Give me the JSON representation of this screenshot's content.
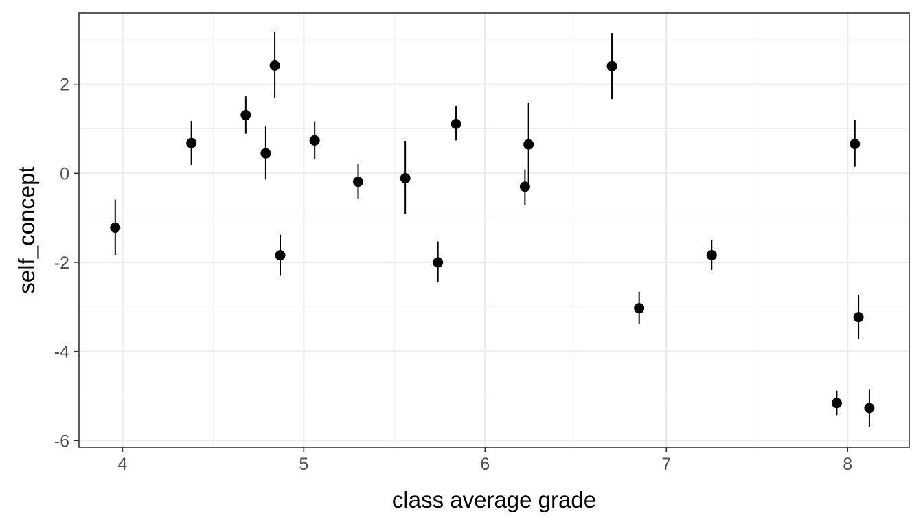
{
  "chart_data": {
    "type": "scatter",
    "xlabel": "class average grade",
    "ylabel": "self_concept",
    "xlim": [
      3.76,
      8.34
    ],
    "ylim": [
      -6.15,
      3.6
    ],
    "x_ticks": [
      4,
      5,
      6,
      7,
      8
    ],
    "y_ticks": [
      -6,
      -4,
      -2,
      0,
      2
    ],
    "x_tick_labels": [
      "4",
      "5",
      "6",
      "7",
      "8"
    ],
    "y_tick_labels": [
      "-6",
      "-4",
      "-2",
      "0",
      "2"
    ],
    "grid": true,
    "legend": "none",
    "points": [
      {
        "x": 3.96,
        "y": -1.22,
        "ymin": -1.83,
        "ymax": -0.59
      },
      {
        "x": 4.38,
        "y": 0.68,
        "ymin": 0.19,
        "ymax": 1.18
      },
      {
        "x": 4.68,
        "y": 1.31,
        "ymin": 0.89,
        "ymax": 1.73
      },
      {
        "x": 4.79,
        "y": 0.45,
        "ymin": -0.14,
        "ymax": 1.05
      },
      {
        "x": 4.84,
        "y": 2.42,
        "ymin": 1.69,
        "ymax": 3.17
      },
      {
        "x": 4.87,
        "y": -1.84,
        "ymin": -2.3,
        "ymax": -1.38
      },
      {
        "x": 5.06,
        "y": 0.74,
        "ymin": 0.33,
        "ymax": 1.17
      },
      {
        "x": 5.3,
        "y": -0.19,
        "ymin": -0.58,
        "ymax": 0.21
      },
      {
        "x": 5.56,
        "y": -0.11,
        "ymin": -0.92,
        "ymax": 0.73
      },
      {
        "x": 5.74,
        "y": -2.0,
        "ymin": -2.45,
        "ymax": -1.53
      },
      {
        "x": 5.84,
        "y": 1.11,
        "ymin": 0.74,
        "ymax": 1.5
      },
      {
        "x": 6.22,
        "y": -0.3,
        "ymin": -0.71,
        "ymax": 0.09
      },
      {
        "x": 6.24,
        "y": 0.65,
        "ymin": -0.28,
        "ymax": 1.58
      },
      {
        "x": 6.7,
        "y": 2.41,
        "ymin": 1.67,
        "ymax": 3.15
      },
      {
        "x": 6.85,
        "y": -3.03,
        "ymin": -3.39,
        "ymax": -2.66
      },
      {
        "x": 7.25,
        "y": -1.84,
        "ymin": -2.17,
        "ymax": -1.49
      },
      {
        "x": 7.94,
        "y": -5.16,
        "ymin": -5.43,
        "ymax": -4.88
      },
      {
        "x": 8.04,
        "y": 0.66,
        "ymin": 0.15,
        "ymax": 1.2
      },
      {
        "x": 8.06,
        "y": -3.23,
        "ymin": -3.72,
        "ymax": -2.74
      },
      {
        "x": 8.12,
        "y": -5.27,
        "ymin": -5.7,
        "ymax": -4.86
      }
    ]
  }
}
